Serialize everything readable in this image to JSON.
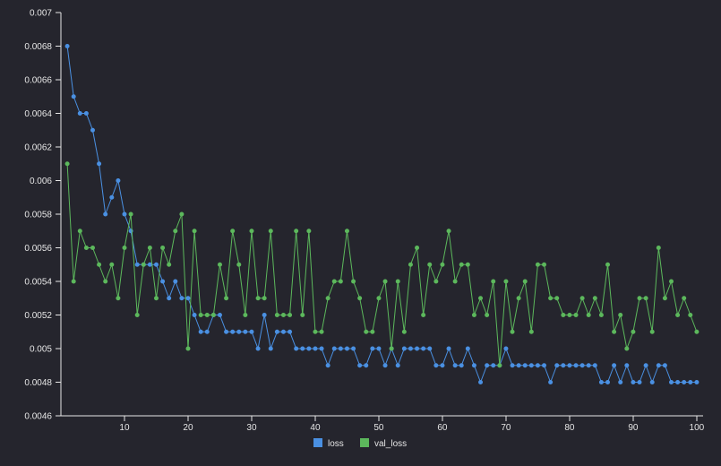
{
  "chart_data": {
    "type": "line",
    "title": "",
    "xlabel": "",
    "ylabel": "",
    "xlim": [
      0,
      101
    ],
    "ylim": [
      0.0046,
      0.007
    ],
    "x_ticks": [
      "10",
      "20",
      "30",
      "40",
      "50",
      "60",
      "70",
      "80",
      "90",
      "100"
    ],
    "y_ticks": [
      "0.0046",
      "0.0048",
      "0.005",
      "0.0052",
      "0.0054",
      "0.0056",
      "0.0058",
      "0.006",
      "0.0062",
      "0.0064",
      "0.0066",
      "0.0068",
      "0.007"
    ],
    "grid": false,
    "legend_position": "bottom",
    "x": [
      1,
      2,
      3,
      4,
      5,
      6,
      7,
      8,
      9,
      10,
      11,
      12,
      13,
      14,
      15,
      16,
      17,
      18,
      19,
      20,
      21,
      22,
      23,
      24,
      25,
      26,
      27,
      28,
      29,
      30,
      31,
      32,
      33,
      34,
      35,
      36,
      37,
      38,
      39,
      40,
      41,
      42,
      43,
      44,
      45,
      46,
      47,
      48,
      49,
      50,
      51,
      52,
      53,
      54,
      55,
      56,
      57,
      58,
      59,
      60,
      61,
      62,
      63,
      64,
      65,
      66,
      67,
      68,
      69,
      70,
      71,
      72,
      73,
      74,
      75,
      76,
      77,
      78,
      79,
      80,
      81,
      82,
      83,
      84,
      85,
      86,
      87,
      88,
      89,
      90,
      91,
      92,
      93,
      94,
      95,
      96,
      97,
      98,
      99,
      100
    ],
    "series": [
      {
        "name": "loss",
        "color": "#4a90e2",
        "values": [
          0.0068,
          0.0065,
          0.0064,
          0.0064,
          0.0063,
          0.0061,
          0.0058,
          0.0059,
          0.006,
          0.0058,
          0.0057,
          0.0055,
          0.0055,
          0.0055,
          0.0055,
          0.0054,
          0.0053,
          0.0054,
          0.0053,
          0.0053,
          0.0052,
          0.0051,
          0.0051,
          0.0052,
          0.0052,
          0.0051,
          0.0051,
          0.0051,
          0.0051,
          0.0051,
          0.005,
          0.0052,
          0.005,
          0.0051,
          0.0051,
          0.0051,
          0.005,
          0.005,
          0.005,
          0.005,
          0.005,
          0.0049,
          0.005,
          0.005,
          0.005,
          0.005,
          0.0049,
          0.0049,
          0.005,
          0.005,
          0.0049,
          0.005,
          0.0049,
          0.005,
          0.005,
          0.005,
          0.005,
          0.005,
          0.0049,
          0.0049,
          0.005,
          0.0049,
          0.0049,
          0.005,
          0.0049,
          0.0048,
          0.0049,
          0.0049,
          0.0049,
          0.005,
          0.0049,
          0.0049,
          0.0049,
          0.0049,
          0.0049,
          0.0049,
          0.0048,
          0.0049,
          0.0049,
          0.0049,
          0.0049,
          0.0049,
          0.0049,
          0.0049,
          0.0048,
          0.0048,
          0.0049,
          0.0048,
          0.0049,
          0.0048,
          0.0048,
          0.0049,
          0.0048,
          0.0049,
          0.0049,
          0.0048,
          0.0048,
          0.0048,
          0.0048,
          0.0048
        ]
      },
      {
        "name": "val_loss",
        "color": "#5cb85c",
        "values": [
          0.0061,
          0.0054,
          0.0057,
          0.0056,
          0.0056,
          0.0055,
          0.0054,
          0.0055,
          0.0053,
          0.0056,
          0.0058,
          0.0052,
          0.0055,
          0.0056,
          0.0053,
          0.0056,
          0.0055,
          0.0057,
          0.0058,
          0.005,
          0.0057,
          0.0052,
          0.0052,
          0.0052,
          0.0055,
          0.0053,
          0.0057,
          0.0055,
          0.0052,
          0.0057,
          0.0053,
          0.0053,
          0.0057,
          0.0052,
          0.0052,
          0.0052,
          0.0057,
          0.0052,
          0.0057,
          0.0051,
          0.0051,
          0.0053,
          0.0054,
          0.0054,
          0.0057,
          0.0054,
          0.0053,
          0.0051,
          0.0051,
          0.0053,
          0.0054,
          0.005,
          0.0054,
          0.0051,
          0.0055,
          0.0056,
          0.0052,
          0.0055,
          0.0054,
          0.0055,
          0.0057,
          0.0054,
          0.0055,
          0.0055,
          0.0052,
          0.0053,
          0.0052,
          0.0054,
          0.0049,
          0.0054,
          0.0051,
          0.0053,
          0.0054,
          0.0051,
          0.0055,
          0.0055,
          0.0053,
          0.0053,
          0.0052,
          0.0052,
          0.0052,
          0.0053,
          0.0052,
          0.0053,
          0.0052,
          0.0055,
          0.0051,
          0.0052,
          0.005,
          0.0051,
          0.0053,
          0.0053,
          0.0051,
          0.0056,
          0.0053,
          0.0054,
          0.0052,
          0.0053,
          0.0052,
          0.0051
        ]
      }
    ]
  }
}
